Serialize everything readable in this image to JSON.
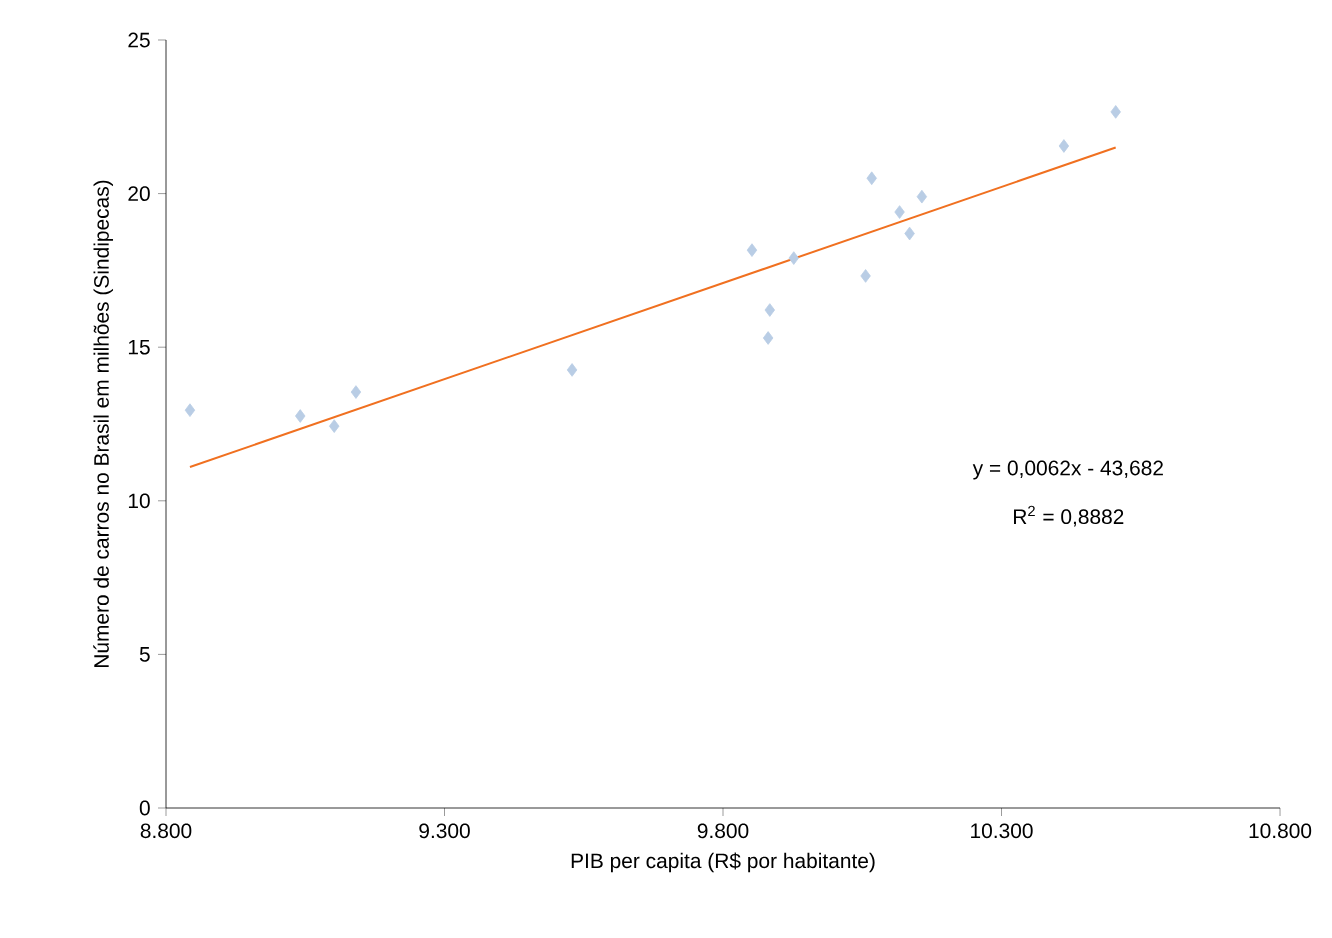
{
  "chart_data": {
    "type": "scatter",
    "xlabel": "PIB per capita (R$ por habitante)",
    "ylabel": "Número de carros no Brasil em milhões (Sindipecas)",
    "xlim": [
      8800,
      10800
    ],
    "ylim": [
      0,
      25
    ],
    "xticks": [
      {
        "value": 8800,
        "label": "8.800"
      },
      {
        "value": 9300,
        "label": "9.300"
      },
      {
        "value": 9800,
        "label": "9.800"
      },
      {
        "value": 10300,
        "label": "10.300"
      },
      {
        "value": 10800,
        "label": "10.800"
      }
    ],
    "yticks": [
      0,
      5,
      10,
      15,
      20,
      25
    ],
    "marker": "diamond",
    "grid": false,
    "annotations": [
      "y = 0,0062x - 43,682",
      "R$^{2}$ = 0,8882"
    ],
    "series": [
      {
        "color": "#b9cde5",
        "x": [
          8843,
          9041,
          9102,
          9141,
          9529,
          9881,
          9852,
          9884,
          9927,
          10056,
          10067,
          10117,
          10135,
          10157,
          10412,
          10505
        ],
        "values": [
          12.95,
          12.76,
          12.43,
          13.54,
          14.26,
          15.3,
          18.16,
          16.21,
          17.9,
          17.32,
          20.5,
          19.4,
          18.7,
          19.9,
          21.55,
          22.66
        ]
      },
      {
        "type": "line",
        "marker": "none",
        "color": "#f07020",
        "x": [
          8843,
          10505
        ],
        "values": [
          11.1,
          21.5
        ]
      }
    ]
  }
}
